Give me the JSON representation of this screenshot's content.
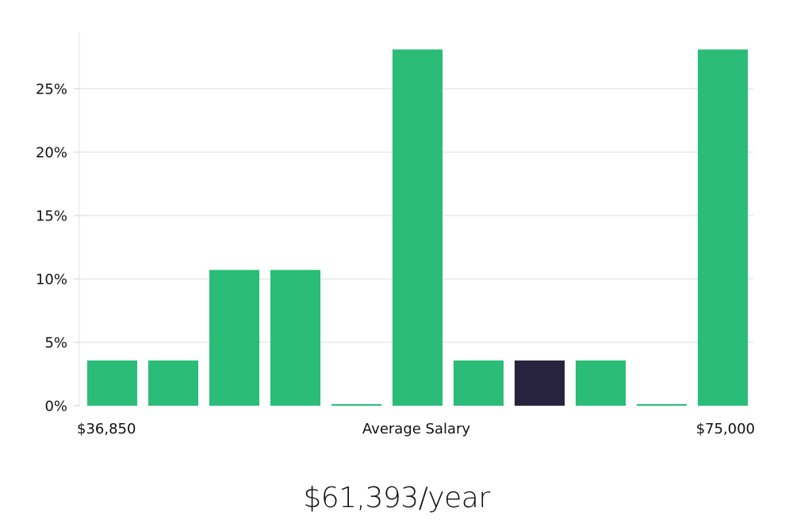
{
  "chart_data": {
    "type": "bar",
    "title": "",
    "xlabel": "Average Salary",
    "ylabel": "",
    "ylim": [
      0,
      29.5
    ],
    "yticks": [
      0,
      5,
      10,
      15,
      20,
      25
    ],
    "ytick_labels": [
      "0%",
      "5%",
      "10%",
      "15%",
      "20%",
      "25%"
    ],
    "x_range_labels": {
      "min": "$36,850",
      "max": "$75,000"
    },
    "values": [
      3.57,
      3.57,
      10.71,
      10.71,
      0.05,
      28.1,
      3.57,
      3.57,
      3.57,
      0.05,
      28.1
    ],
    "highlight_index": 7,
    "colors": {
      "bar": "#2bbd78",
      "highlight": "#27233f"
    }
  },
  "summary": {
    "salary_text": "$61,393/year"
  }
}
